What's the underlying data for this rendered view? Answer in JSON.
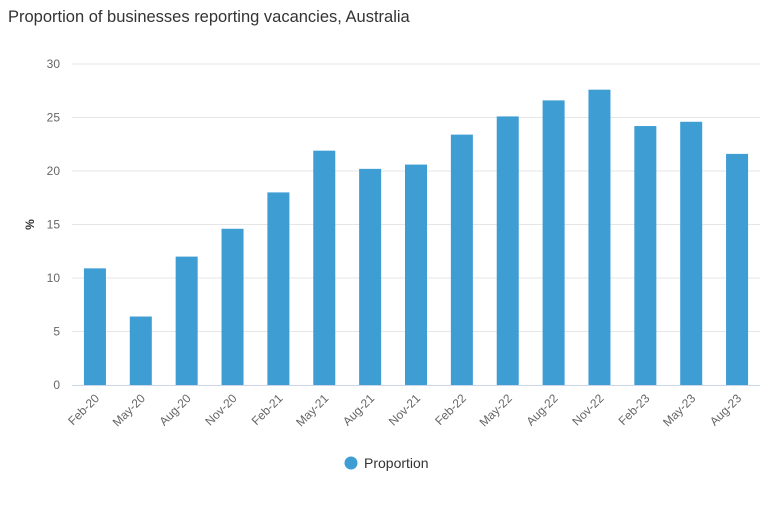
{
  "chart_data": {
    "type": "bar",
    "title": "Proportion of businesses reporting vacancies, Australia",
    "xlabel": "",
    "ylabel": "%",
    "ylim": [
      0,
      30
    ],
    "yticks": [
      0,
      5,
      10,
      15,
      20,
      25,
      30
    ],
    "grid": true,
    "legend_position": "bottom",
    "categories": [
      "Feb-20",
      "May-20",
      "Aug-20",
      "Nov-20",
      "Feb-21",
      "May-21",
      "Aug-21",
      "Nov-21",
      "Feb-22",
      "May-22",
      "Aug-22",
      "Nov-22",
      "Feb-23",
      "May-23",
      "Aug-23"
    ],
    "series": [
      {
        "name": "Proportion",
        "color": "#3e9dd3",
        "values": [
          10.9,
          6.4,
          12.0,
          14.6,
          18.0,
          21.9,
          20.2,
          20.6,
          23.4,
          25.1,
          26.6,
          27.6,
          24.2,
          24.6,
          21.6
        ]
      }
    ]
  }
}
